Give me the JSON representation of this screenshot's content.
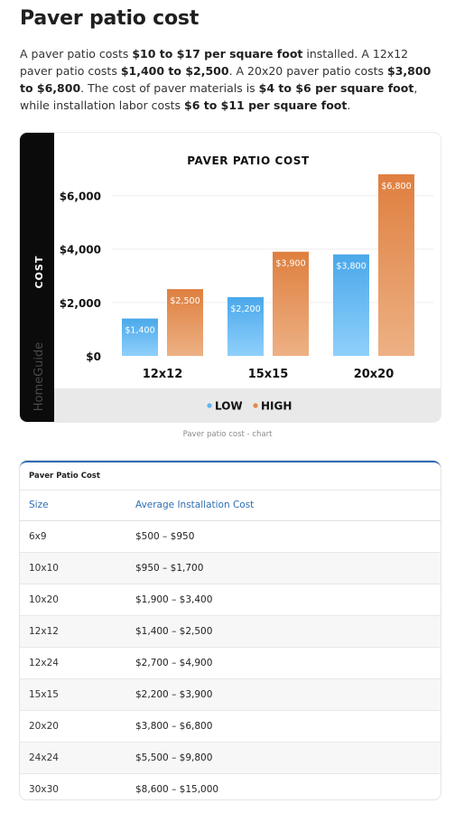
{
  "page": {
    "title": "Paver patio cost",
    "intro": [
      {
        "text": "A paver patio costs ",
        "bold": false
      },
      {
        "text": "$10 to $17 per square foot",
        "bold": true
      },
      {
        "text": " installed. A 12x12 paver patio costs ",
        "bold": false
      },
      {
        "text": "$1,400 to $2,500",
        "bold": true
      },
      {
        "text": ". A 20x20 paver patio costs ",
        "bold": false
      },
      {
        "text": "$3,800 to $6,800",
        "bold": true
      },
      {
        "text": ". The cost of paver materials is ",
        "bold": false
      },
      {
        "text": "$4 to $6 per square foot",
        "bold": true
      },
      {
        "text": ", while installation labor costs ",
        "bold": false
      },
      {
        "text": "$6 to $11 per square foot",
        "bold": true
      },
      {
        "text": ".",
        "bold": false
      }
    ]
  },
  "chart_data": {
    "type": "bar",
    "title": "PAVER PATIO COST",
    "ylabel": "COST",
    "xlabel": "",
    "brand": "HomeGuide",
    "categories": [
      "12x12",
      "15x15",
      "20x20"
    ],
    "series": [
      {
        "name": "LOW",
        "values": [
          1400,
          2200,
          3800
        ],
        "labels": [
          "$1,400",
          "$2,200",
          "$3,800"
        ],
        "color": "#5fb4ee"
      },
      {
        "name": "HIGH",
        "values": [
          2500,
          3900,
          6800
        ],
        "labels": [
          "$2,500",
          "$3,900",
          "$6,800"
        ],
        "color": "#e2874a"
      }
    ],
    "yticks": [
      0,
      2000,
      4000,
      6000
    ],
    "ytick_labels": [
      "$0",
      "$2,000",
      "$4,000",
      "$6,000"
    ],
    "ylim": [
      0,
      7000
    ],
    "grid": true,
    "legend": "bottom"
  },
  "caption": "Paver patio cost - chart",
  "table": {
    "title": "Paver Patio Cost",
    "headers": [
      "Size",
      "Average Installation Cost"
    ],
    "rows": [
      [
        "6x9",
        "$500 – $950"
      ],
      [
        "10x10",
        "$950 – $1,700"
      ],
      [
        "10x20",
        "$1,900 – $3,400"
      ],
      [
        "12x12",
        "$1,400 – $2,500"
      ],
      [
        "12x24",
        "$2,700 – $4,900"
      ],
      [
        "15x15",
        "$2,200 – $3,900"
      ],
      [
        "20x20",
        "$3,800 – $6,800"
      ],
      [
        "24x24",
        "$5,500 – $9,800"
      ],
      [
        "30x30",
        "$8,600 – $15,000"
      ]
    ]
  }
}
